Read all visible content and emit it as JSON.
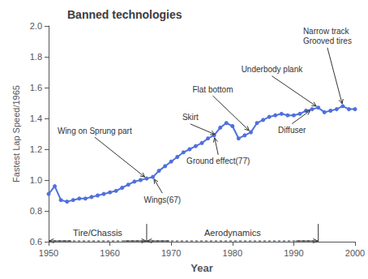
{
  "chart_data": {
    "type": "line",
    "title": "Banned technologies",
    "xlabel": "Year",
    "ylabel": "Fastest Lap Speed/1965",
    "x": [
      1950,
      1951,
      1952,
      1953,
      1954,
      1955,
      1956,
      1957,
      1958,
      1959,
      1960,
      1961,
      1962,
      1963,
      1964,
      1965,
      1966,
      1967,
      1968,
      1969,
      1970,
      1971,
      1972,
      1973,
      1974,
      1975,
      1976,
      1977,
      1978,
      1979,
      1980,
      1981,
      1982,
      1983,
      1984,
      1985,
      1986,
      1987,
      1988,
      1989,
      1990,
      1991,
      1992,
      1993,
      1994,
      1995,
      1996,
      1997,
      1998,
      1999,
      2000
    ],
    "values": [
      0.91,
      0.96,
      0.87,
      0.86,
      0.87,
      0.88,
      0.88,
      0.89,
      0.9,
      0.91,
      0.92,
      0.93,
      0.95,
      0.97,
      0.99,
      1.0,
      1.01,
      1.02,
      1.06,
      1.09,
      1.12,
      1.15,
      1.18,
      1.2,
      1.22,
      1.24,
      1.27,
      1.29,
      1.34,
      1.37,
      1.35,
      1.27,
      1.29,
      1.31,
      1.37,
      1.39,
      1.41,
      1.42,
      1.43,
      1.42,
      1.42,
      1.43,
      1.45,
      1.46,
      1.47,
      1.44,
      1.45,
      1.46,
      1.48,
      1.46,
      1.46
    ],
    "marker": "circle",
    "xlim": [
      1950,
      2000
    ],
    "ylim": [
      0.6,
      2.0
    ],
    "xticks": [
      1950,
      1960,
      1970,
      1980,
      1990,
      2000
    ],
    "yticks": [
      0.6,
      0.8,
      {
        "value": 1.0,
        "label": "1.0"
      },
      1.2,
      1.4,
      1.6,
      1.8,
      {
        "value": 2.0,
        "label": "2.0"
      }
    ],
    "grid": false,
    "annotations": [
      {
        "text": "Wing on Sprung part",
        "x": 1966,
        "y": 1.01
      },
      {
        "text": "Wings(67)",
        "x": 1967,
        "y": 1.02
      },
      {
        "text": "Skirt",
        "x": 1977.5,
        "y": 1.29
      },
      {
        "text": "Flat bottom",
        "x": 1983,
        "y": 1.31
      },
      {
        "text": "Ground effect(77)",
        "x": 1977,
        "y": 1.29
      },
      {
        "text": "Underbody plank",
        "x": 1994,
        "y": 1.47
      },
      {
        "text": "Diffuser",
        "x": 1993,
        "y": 1.46
      },
      {
        "text": "Narrow track\nGrooved tires",
        "x": 1998,
        "y": 1.48
      }
    ],
    "eras": [
      {
        "text": "Tire/Chassis",
        "start": 1950,
        "end": 1966
      },
      {
        "text": "Aerodynamics",
        "start": 1966,
        "end": 1994
      }
    ]
  }
}
